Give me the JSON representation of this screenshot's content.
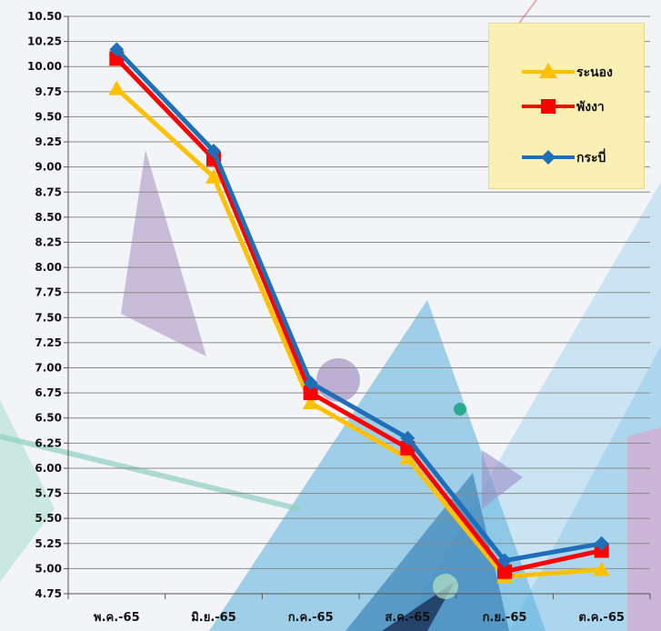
{
  "chart_data": {
    "type": "line",
    "categories": [
      "พ.ค.-65",
      "มิ.ย.-65",
      "ก.ค.-65",
      "ส.ค.-65",
      "ก.ย.-65",
      "ต.ค.-65"
    ],
    "yticks": [
      "4.75",
      "5.00",
      "5.25",
      "5.50",
      "5.75",
      "6.00",
      "6.25",
      "6.50",
      "6.75",
      "7.00",
      "7.25",
      "7.50",
      "7.75",
      "8.00",
      "8.25",
      "8.50",
      "8.75",
      "9.00",
      "9.25",
      "9.50",
      "9.75",
      "10.00",
      "10.25",
      "10.50"
    ],
    "ylim": [
      4.75,
      10.5
    ],
    "grid": true,
    "legend_position": "top-right",
    "series": [
      {
        "name": "ระนอง",
        "color": "#ffc000",
        "marker": "triangle",
        "values": [
          9.78,
          8.9,
          6.65,
          6.1,
          4.92,
          4.99
        ]
      },
      {
        "name": "พังงา",
        "color": "#ff0000",
        "marker": "square",
        "values": [
          10.08,
          9.08,
          6.75,
          6.2,
          4.97,
          5.18
        ]
      },
      {
        "name": "กระบี่",
        "color": "#1f6fb8",
        "marker": "diamond",
        "values": [
          10.17,
          9.16,
          6.85,
          6.3,
          5.08,
          5.25
        ]
      }
    ],
    "xlabel": "",
    "ylabel": "",
    "title": ""
  }
}
